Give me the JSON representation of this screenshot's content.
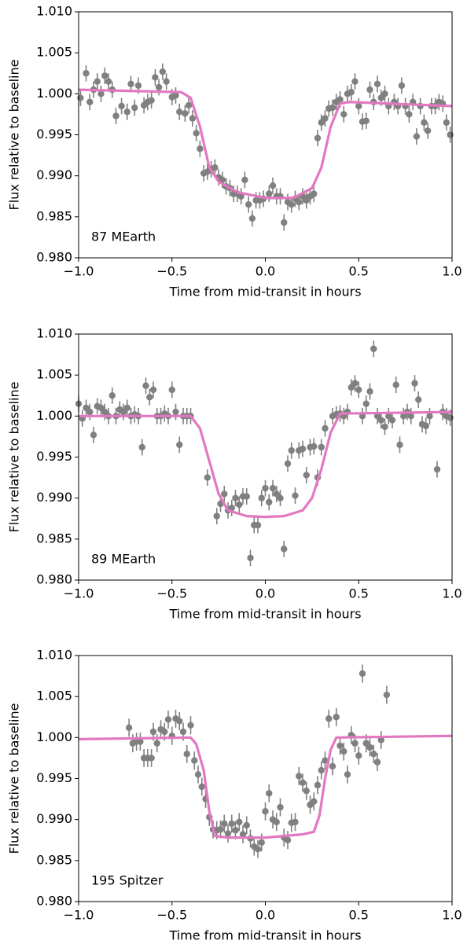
{
  "chart_data": [
    {
      "type": "scatter",
      "annotation": "87 MEarth",
      "xlabel": "Time from mid-transit in hours",
      "ylabel": "Flux relative to baseline",
      "xlim": [
        -1.0,
        1.0
      ],
      "ylim": [
        0.98,
        1.01
      ],
      "xticks": [
        {
          "value": -1.0,
          "label": "−1.0"
        },
        {
          "value": -0.5,
          "label": "−0.5"
        },
        {
          "value": 0.0,
          "label": "0.0"
        },
        {
          "value": 0.5,
          "label": "0.5"
        },
        {
          "value": 1.0,
          "label": "1.0"
        }
      ],
      "yticks": [
        {
          "value": 0.98,
          "label": "0.980"
        },
        0.985,
        {
          "value": 0.99,
          "label": "0.990"
        },
        0.995,
        {
          "value": 1.0,
          "label": "1.000"
        },
        1.005,
        {
          "value": 1.01,
          "label": "1.010"
        }
      ],
      "series": [
        {
          "color": "#808080",
          "error": 0.001,
          "x": [
            -0.99,
            -0.96,
            -0.94,
            -0.92,
            -0.9,
            -0.88,
            -0.86,
            -0.84,
            -0.82,
            -0.8,
            -0.77,
            -0.74,
            -0.72,
            -0.7,
            -0.68,
            -0.65,
            -0.63,
            -0.61,
            -0.59,
            -0.57,
            -0.55,
            -0.53,
            -0.5,
            -0.48,
            -0.46,
            -0.43,
            -0.41,
            -0.39,
            -0.37,
            -0.35,
            -0.33,
            -0.31,
            -0.29,
            -0.27,
            -0.25,
            -0.23,
            -0.21,
            -0.19,
            -0.17,
            -0.15,
            -0.13,
            -0.11,
            -0.09,
            -0.07,
            -0.05,
            -0.03,
            -0.01,
            0.02,
            0.04,
            0.06,
            0.08,
            0.1,
            0.12,
            0.14,
            0.16,
            0.18,
            0.2,
            0.22,
            0.24,
            0.26,
            0.28,
            0.3,
            0.32,
            0.34,
            0.36,
            0.38,
            0.4,
            0.42,
            0.44,
            0.46,
            0.48,
            0.5,
            0.52,
            0.54,
            0.56,
            0.58,
            0.6,
            0.62,
            0.64,
            0.66,
            0.69,
            0.71,
            0.73,
            0.75,
            0.77,
            0.79,
            0.81,
            0.83,
            0.85,
            0.87,
            0.89,
            0.91,
            0.93,
            0.95,
            0.97,
            0.99
          ],
          "values": [
            0.9995,
            1.0025,
            0.999,
            1.0005,
            1.0015,
            1.0,
            1.0022,
            1.0015,
            1.0005,
            0.9973,
            0.9985,
            0.9978,
            1.0012,
            0.9983,
            1.001,
            0.9986,
            0.999,
            0.9992,
            1.002,
            1.0008,
            1.0027,
            1.0015,
            0.9996,
            0.9998,
            0.9978,
            0.9976,
            0.9986,
            0.997,
            0.9952,
            0.9933,
            0.9903,
            0.9905,
            0.9908,
            0.991,
            0.9898,
            0.9895,
            0.9887,
            0.9885,
            0.9878,
            0.9878,
            0.9875,
            0.9895,
            0.9865,
            0.9848,
            0.987,
            0.987,
            0.9872,
            0.9878,
            0.9888,
            0.9875,
            0.9875,
            0.9843,
            0.9868,
            0.9865,
            0.9872,
            0.9868,
            0.9875,
            0.987,
            0.9875,
            0.9878,
            0.9946,
            0.9965,
            0.997,
            0.9982,
            0.9983,
            0.999,
            0.9993,
            0.9975,
            1.0,
            1.0002,
            1.0015,
            0.9985,
            0.9966,
            0.9967,
            1.0005,
            0.999,
            1.0012,
            0.9995,
            1.0,
            0.9985,
            0.999,
            0.9985,
            1.001,
            0.9985,
            0.9975,
            0.999,
            0.9948,
            0.9985,
            0.9965,
            0.9955,
            0.9985,
            0.9985,
            0.999,
            0.9988,
            0.9965,
            0.995
          ]
        }
      ],
      "model": {
        "color": "#e377c2",
        "x": [
          -1,
          -0.45,
          -0.4,
          -0.35,
          -0.3,
          -0.25,
          -0.15,
          0,
          0.15,
          0.25,
          0.3,
          0.35,
          0.4,
          0.45,
          1
        ],
        "values": [
          1.0005,
          1.0002,
          0.9995,
          0.996,
          0.991,
          0.9893,
          0.988,
          0.9873,
          0.9873,
          0.9885,
          0.991,
          0.996,
          0.9988,
          0.999,
          0.9985
        ]
      }
    },
    {
      "type": "scatter",
      "annotation": "89 MEarth",
      "xlabel": "Time from mid-transit in hours",
      "ylabel": "Flux relative to baseline",
      "xlim": [
        -1.0,
        1.0
      ],
      "ylim": [
        0.98,
        1.01
      ],
      "xticks": [
        {
          "value": -1.0,
          "label": "−1.0"
        },
        {
          "value": -0.5,
          "label": "−0.5"
        },
        {
          "value": 0.0,
          "label": "0.0"
        },
        {
          "value": 0.5,
          "label": "0.5"
        },
        {
          "value": 1.0,
          "label": "1.0"
        }
      ],
      "yticks": [
        {
          "value": 0.98,
          "label": "0.980"
        },
        0.985,
        {
          "value": 0.99,
          "label": "0.990"
        },
        0.995,
        {
          "value": 1.0,
          "label": "1.000"
        },
        1.005,
        {
          "value": 1.01,
          "label": "1.010"
        }
      ],
      "series": [
        {
          "color": "#808080",
          "error": 0.001,
          "x": [
            -1.0,
            -0.98,
            -0.96,
            -0.94,
            -0.92,
            -0.9,
            -0.88,
            -0.86,
            -0.84,
            -0.82,
            -0.8,
            -0.78,
            -0.76,
            -0.74,
            -0.72,
            -0.7,
            -0.68,
            -0.66,
            -0.64,
            -0.62,
            -0.6,
            -0.58,
            -0.56,
            -0.54,
            -0.52,
            -0.5,
            -0.48,
            -0.46,
            -0.44,
            -0.42,
            -0.4,
            -0.31,
            -0.26,
            -0.24,
            -0.22,
            -0.2,
            -0.18,
            -0.16,
            -0.14,
            -0.12,
            -0.1,
            -0.08,
            -0.06,
            -0.04,
            -0.02,
            0.0,
            0.02,
            0.04,
            0.06,
            0.08,
            0.1,
            0.12,
            0.14,
            0.16,
            0.18,
            0.2,
            0.22,
            0.24,
            0.26,
            0.28,
            0.3,
            0.32,
            0.36,
            0.38,
            0.4,
            0.42,
            0.44,
            0.46,
            0.48,
            0.5,
            0.52,
            0.54,
            0.56,
            0.58,
            0.6,
            0.62,
            0.64,
            0.66,
            0.68,
            0.7,
            0.72,
            0.74,
            0.76,
            0.78,
            0.8,
            0.82,
            0.84,
            0.86,
            0.88,
            0.92,
            0.95,
            0.97,
            0.99
          ],
          "values": [
            1.0015,
            0.9997,
            1.001,
            1.0005,
            0.9977,
            1.0012,
            1.001,
            1.0005,
            1.0,
            1.0025,
            1.0,
            1.0008,
            1.0005,
            1.001,
            1.0,
            1.0002,
            1.0,
            0.9962,
            1.0037,
            1.0023,
            1.0032,
            1.0,
            1.0,
            1.0003,
            1.0,
            1.0032,
            1.0005,
            0.9965,
            1.0,
            1.0,
            1.0,
            0.9925,
            0.9878,
            0.9893,
            0.9905,
            0.9885,
            0.9888,
            0.99,
            0.9892,
            0.9902,
            0.9902,
            0.9827,
            0.9867,
            0.9867,
            0.99,
            0.9912,
            0.9895,
            0.9912,
            0.9905,
            0.99,
            0.9838,
            0.9942,
            0.9958,
            0.9903,
            0.9958,
            0.996,
            0.9928,
            0.9962,
            0.9963,
            0.9925,
            0.9962,
            0.9985,
            1.0,
            1.0002,
            1.0003,
            1.0,
            1.0005,
            1.0035,
            1.004,
            1.0032,
            1.0,
            1.0015,
            1.003,
            1.0082,
            1.0,
            0.9995,
            0.9987,
            1.0,
            0.9995,
            1.0038,
            0.9965,
            1.0,
            1.0005,
            1.0,
            1.004,
            1.002,
            0.999,
            0.9988,
            1.0,
            0.9935,
            1.0005,
            1.0,
            0.9998
          ]
        }
      ],
      "model": {
        "color": "#e377c2",
        "x": [
          -1,
          -0.4,
          -0.35,
          -0.3,
          -0.25,
          -0.2,
          -0.1,
          0,
          0.1,
          0.2,
          0.25,
          0.3,
          0.35,
          0.4,
          1
        ],
        "values": [
          1.0,
          1.0,
          0.9985,
          0.9945,
          0.9905,
          0.9885,
          0.9878,
          0.9877,
          0.9878,
          0.9885,
          0.99,
          0.9935,
          0.998,
          1.0003,
          1.0005
        ]
      }
    },
    {
      "type": "scatter",
      "annotation": "195 Spitzer",
      "xlabel": "Time from mid-transit in hours",
      "ylabel": "Flux relative to baseline",
      "xlim": [
        -1.0,
        1.0
      ],
      "ylim": [
        0.98,
        1.01
      ],
      "xticks": [
        {
          "value": -1.0,
          "label": "−1.0"
        },
        {
          "value": -0.5,
          "label": "−0.5"
        },
        {
          "value": 0.0,
          "label": "0.0"
        },
        {
          "value": 0.5,
          "label": "0.5"
        },
        {
          "value": 1.0,
          "label": "1.0"
        }
      ],
      "yticks": [
        {
          "value": 0.98,
          "label": "0.980"
        },
        0.985,
        {
          "value": 0.99,
          "label": "0.990"
        },
        0.995,
        {
          "value": 1.0,
          "label": "1.000"
        },
        1.005,
        {
          "value": 1.01,
          "label": "1.010"
        }
      ],
      "series": [
        {
          "color": "#808080",
          "error": 0.0011,
          "x": [
            -0.73,
            -0.71,
            -0.69,
            -0.67,
            -0.65,
            -0.63,
            -0.61,
            -0.6,
            -0.58,
            -0.56,
            -0.54,
            -0.52,
            -0.5,
            -0.48,
            -0.46,
            -0.44,
            -0.42,
            -0.4,
            -0.38,
            -0.36,
            -0.34,
            -0.32,
            -0.3,
            -0.28,
            -0.26,
            -0.24,
            -0.22,
            -0.2,
            -0.18,
            -0.16,
            -0.14,
            -0.12,
            -0.1,
            -0.08,
            -0.06,
            -0.04,
            -0.02,
            0.0,
            0.02,
            0.04,
            0.06,
            0.08,
            0.1,
            0.12,
            0.14,
            0.16,
            0.18,
            0.2,
            0.22,
            0.24,
            0.26,
            0.28,
            0.3,
            0.32,
            0.34,
            0.36,
            0.38,
            0.4,
            0.42,
            0.44,
            0.46,
            0.48,
            0.5,
            0.52,
            0.54,
            0.56,
            0.58,
            0.6,
            0.62,
            0.65
          ],
          "values": [
            1.0012,
            0.9993,
            0.9995,
            0.9995,
            0.9975,
            0.9975,
            0.9975,
            1.0007,
            0.9993,
            1.001,
            1.0007,
            1.0022,
            1.0002,
            1.0023,
            1.002,
            1.0007,
            0.998,
            1.0015,
            0.9972,
            0.9955,
            0.994,
            0.9925,
            0.9903,
            0.9888,
            0.9887,
            0.9888,
            0.9895,
            0.9883,
            0.9895,
            0.9887,
            0.9897,
            0.9882,
            0.9893,
            0.9877,
            0.9867,
            0.9864,
            0.9872,
            0.991,
            0.9932,
            0.99,
            0.9897,
            0.9915,
            0.9878,
            0.9875,
            0.9896,
            0.9897,
            0.9953,
            0.9945,
            0.9935,
            0.9918,
            0.9922,
            0.9942,
            0.996,
            0.9972,
            1.0023,
            0.9965,
            1.0025,
            0.999,
            0.9983,
            0.9955,
            1.0003,
            0.9993,
            0.9978,
            1.0078,
            0.9993,
            0.9988,
            0.998,
            0.997,
            0.9997,
            1.0052
          ]
        }
      ],
      "model": {
        "color": "#e377c2",
        "x": [
          -1,
          -0.4,
          -0.37,
          -0.33,
          -0.3,
          -0.27,
          -0.2,
          0,
          0.2,
          0.26,
          0.29,
          0.32,
          0.35,
          0.38,
          1
        ],
        "values": [
          0.9998,
          1.0,
          0.9992,
          0.996,
          0.991,
          0.988,
          0.9878,
          0.9878,
          0.9882,
          0.9885,
          0.9905,
          0.995,
          0.9985,
          1.0,
          1.0002
        ]
      }
    }
  ]
}
